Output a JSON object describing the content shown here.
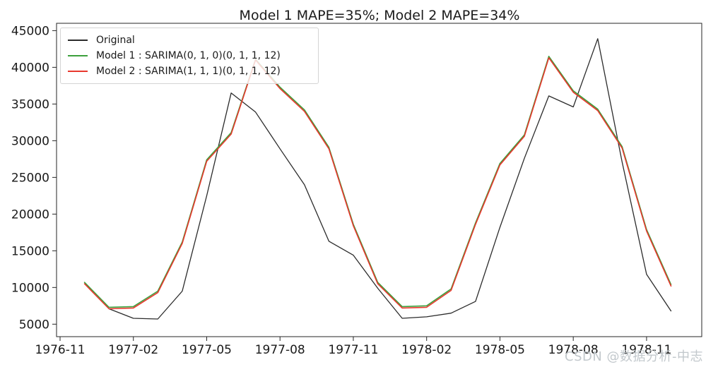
{
  "title": "Model 1 MAPE=35%; Model 2 MAPE=34%",
  "watermark": "CSDN @数据分析-中志",
  "legend": {
    "position": "upper left",
    "items": [
      {
        "label": "Original",
        "color": "#2b2b2b"
      },
      {
        "label": "Model 1 : SARIMA(0, 1, 0)(0, 1, 1, 12)",
        "color": "#3ca03c"
      },
      {
        "label": "Model 2 : SARIMA(1, 1, 1)(0, 1, 1, 12)",
        "color": "#e8382e"
      }
    ]
  },
  "chart_data": {
    "type": "line",
    "title": "Model 1 MAPE=35%; Model 2 MAPE=34%",
    "xlabel": "",
    "ylabel": "",
    "grid": false,
    "legend_position": "upper left",
    "x": [
      "1976-12",
      "1977-01",
      "1977-02",
      "1977-03",
      "1977-04",
      "1977-05",
      "1977-06",
      "1977-07",
      "1977-08",
      "1977-09",
      "1977-10",
      "1977-11",
      "1977-12",
      "1978-01",
      "1978-02",
      "1978-03",
      "1978-04",
      "1978-05",
      "1978-06",
      "1978-07",
      "1978-08",
      "1978-09",
      "1978-10",
      "1978-11",
      "1978-12"
    ],
    "x_tick_labels": [
      "1976-11",
      "1977-02",
      "1977-05",
      "1977-08",
      "1977-11",
      "1978-02",
      "1978-05",
      "1978-08",
      "1978-11"
    ],
    "y_ticks": [
      5000,
      10000,
      15000,
      20000,
      25000,
      30000,
      35000,
      40000,
      45000
    ],
    "ylim": [
      3300,
      46000
    ],
    "series": [
      {
        "name": "Original",
        "color": "#2b2b2b",
        "values": [
          null,
          7100,
          5800,
          5700,
          9500,
          22500,
          36500,
          33900,
          28900,
          24000,
          16300,
          14400,
          9900,
          5800,
          6000,
          6500,
          8100,
          18200,
          27600,
          36100,
          34600,
          43900,
          27100,
          11800,
          6800
        ]
      },
      {
        "name": "Model 1 : SARIMA(0, 1, 0)(0, 1, 1, 12)",
        "color": "#3ca03c",
        "values": [
          10700,
          7300,
          7400,
          9500,
          16200,
          27400,
          31100,
          41100,
          37300,
          34200,
          29100,
          18600,
          10700,
          7400,
          7500,
          9800,
          18800,
          26900,
          30800,
          41500,
          36800,
          34300,
          29200,
          17900,
          10400
        ]
      },
      {
        "name": "Model 2 : SARIMA(1, 1, 1)(0, 1, 1, 12)",
        "color": "#e8382e",
        "values": [
          10500,
          7100,
          7200,
          9300,
          16000,
          27200,
          30900,
          41000,
          37100,
          34000,
          28900,
          18400,
          10500,
          7200,
          7300,
          9600,
          18600,
          26700,
          30600,
          41300,
          36600,
          34100,
          29000,
          17700,
          10200
        ]
      }
    ]
  }
}
